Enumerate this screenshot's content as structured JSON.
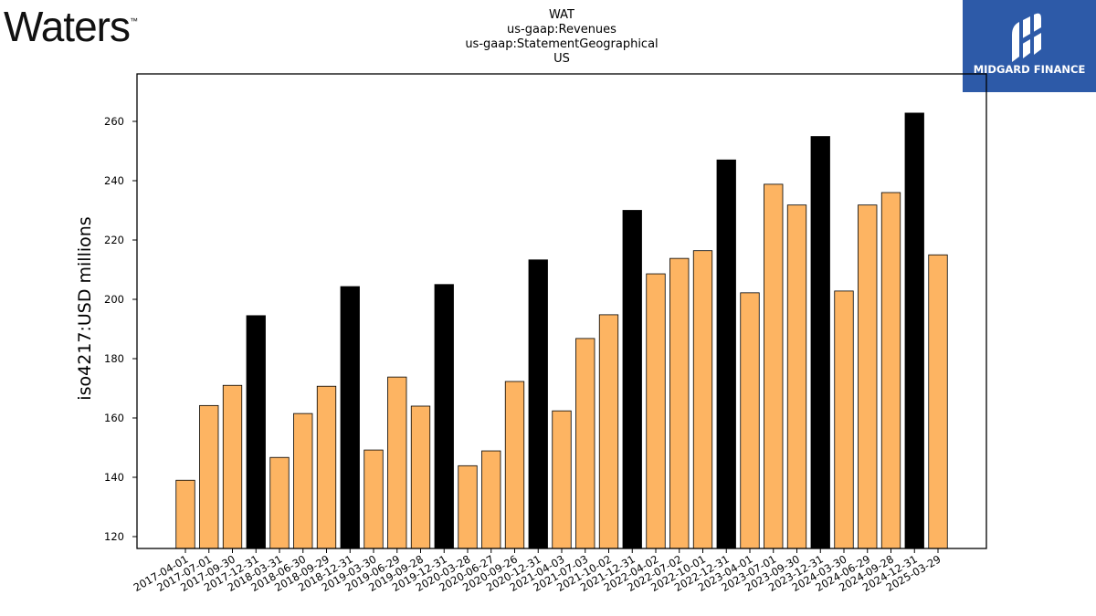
{
  "branding": {
    "left_logo_text": "Waters",
    "left_logo_mark": "™",
    "right_logo_text": "MIDGARD FINANCE",
    "right_logo_color": "#2d5aa8"
  },
  "chart_data": {
    "type": "bar",
    "title_lines": [
      "WAT",
      "us-gaap:Revenues",
      "us-gaap:StatementGeographical",
      "US"
    ],
    "xlabel": "",
    "ylabel": "iso4217:USD  millions",
    "ylim": [
      116,
      276
    ],
    "yticks": [
      120,
      140,
      160,
      180,
      200,
      220,
      240,
      260
    ],
    "grid": false,
    "colors": {
      "quarter": "#fdb462",
      "annual": "#000000"
    },
    "categories": [
      "2017-04-01",
      "2017-07-01",
      "2017-09-30",
      "2017-12-31",
      "2018-03-31",
      "2018-06-30",
      "2018-09-29",
      "2018-12-31",
      "2019-03-30",
      "2019-06-29",
      "2019-09-28",
      "2019-12-31",
      "2020-03-28",
      "2020-06-27",
      "2020-09-26",
      "2020-12-31",
      "2021-04-03",
      "2021-07-03",
      "2021-10-02",
      "2021-12-31",
      "2022-04-02",
      "2022-07-02",
      "2022-10-01",
      "2022-12-31",
      "2023-04-01",
      "2023-07-01",
      "2023-09-30",
      "2023-12-31",
      "2024-03-30",
      "2024-06-29",
      "2024-09-28",
      "2024-12-31",
      "2025-03-29"
    ],
    "values": [
      139.0,
      164.2,
      171.0,
      194.5,
      146.7,
      161.5,
      170.7,
      204.3,
      149.2,
      173.8,
      164.0,
      205.0,
      143.9,
      148.9,
      172.3,
      213.3,
      162.4,
      186.8,
      194.8,
      230.0,
      208.6,
      213.8,
      216.4,
      247.0,
      202.2,
      238.8,
      231.8,
      254.9,
      202.8,
      231.8,
      236.0,
      262.8,
      215.0
    ],
    "annual_flags": [
      false,
      false,
      false,
      true,
      false,
      false,
      false,
      true,
      false,
      false,
      false,
      true,
      false,
      false,
      false,
      true,
      false,
      false,
      false,
      true,
      false,
      false,
      false,
      true,
      false,
      false,
      false,
      true,
      false,
      false,
      false,
      true,
      false
    ]
  }
}
